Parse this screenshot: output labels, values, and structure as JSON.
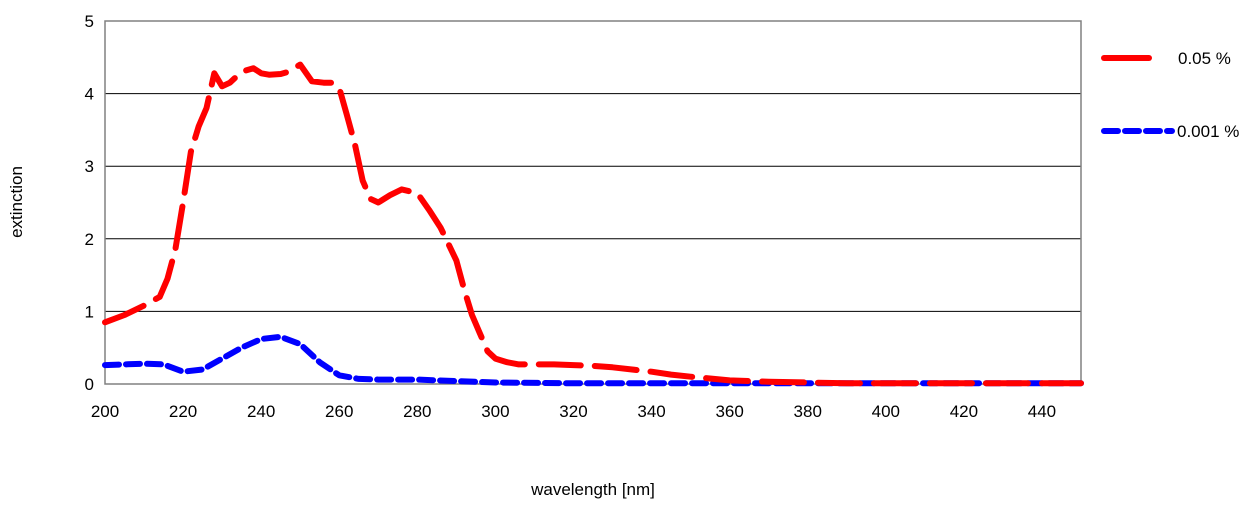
{
  "chart_data": {
    "type": "line",
    "xlabel": "wavelength [nm]",
    "ylabel": "extinction",
    "xlim": [
      200,
      450
    ],
    "ylim": [
      0,
      5
    ],
    "xticks": [
      "200",
      "220",
      "240",
      "260",
      "280",
      "300",
      "320",
      "340",
      "360",
      "380",
      "400",
      "420",
      "440"
    ],
    "yticks": [
      "0",
      "1",
      "2",
      "3",
      "4",
      "5"
    ],
    "grid": "horizontal",
    "legend_position": "right",
    "series": [
      {
        "name": "0.05 %",
        "color": "#ff0000",
        "dash": "long-dash",
        "x": [
          200,
          205,
          210,
          214,
          216,
          218,
          220,
          222,
          224,
          226,
          228,
          230,
          232,
          235,
          238,
          240,
          242,
          245,
          247,
          250,
          253,
          256,
          258,
          260,
          262,
          264,
          266,
          268,
          270,
          273,
          276,
          280,
          283,
          286,
          290,
          292,
          294,
          296,
          298,
          300,
          303,
          306,
          310,
          315,
          320,
          325,
          330,
          335,
          340,
          345,
          350,
          360,
          370,
          380,
          390,
          400,
          410,
          420,
          430,
          440,
          450
        ],
        "y": [
          0.85,
          0.95,
          1.08,
          1.2,
          1.45,
          1.85,
          2.5,
          3.2,
          3.55,
          3.8,
          4.28,
          4.1,
          4.15,
          4.3,
          4.35,
          4.28,
          4.26,
          4.27,
          4.3,
          4.4,
          4.17,
          4.15,
          4.15,
          4.08,
          3.7,
          3.3,
          2.8,
          2.55,
          2.5,
          2.6,
          2.68,
          2.63,
          2.4,
          2.15,
          1.7,
          1.3,
          0.95,
          0.7,
          0.45,
          0.35,
          0.3,
          0.27,
          0.27,
          0.27,
          0.26,
          0.25,
          0.23,
          0.2,
          0.17,
          0.13,
          0.1,
          0.05,
          0.03,
          0.02,
          0.01,
          0.01,
          0.01,
          0.01,
          0.01,
          0.01,
          0.01
        ]
      },
      {
        "name": "0.001 %",
        "color": "#0000ff",
        "dash": "short-dash",
        "x": [
          200,
          205,
          210,
          215,
          220,
          225,
          230,
          235,
          240,
          245,
          250,
          255,
          260,
          265,
          270,
          280,
          290,
          300,
          320,
          340,
          360,
          380,
          400,
          420,
          440,
          450
        ],
        "y": [
          0.26,
          0.27,
          0.28,
          0.27,
          0.17,
          0.2,
          0.35,
          0.5,
          0.62,
          0.65,
          0.55,
          0.3,
          0.12,
          0.07,
          0.06,
          0.06,
          0.04,
          0.02,
          0.01,
          0.01,
          0.01,
          0.01,
          0.01,
          0.01,
          0.01,
          0.01
        ]
      }
    ]
  }
}
